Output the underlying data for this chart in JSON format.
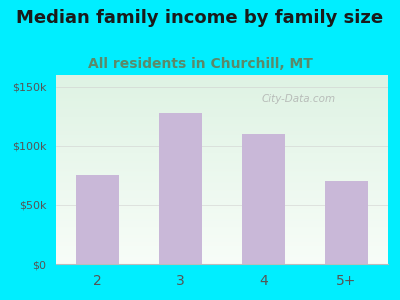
{
  "title": "Median family income by family size",
  "subtitle": "All residents in Churchill, MT",
  "categories": [
    "2",
    "3",
    "4",
    "5+"
  ],
  "values": [
    75000,
    128000,
    110000,
    70000
  ],
  "bar_color": "#c9b8d8",
  "ylim": [
    0,
    160000
  ],
  "yticks": [
    0,
    50000,
    100000,
    150000
  ],
  "ytick_labels": [
    "$0",
    "$50k",
    "$100k",
    "$150k"
  ],
  "bg_outer": "#00eeff",
  "title_fontsize": 13,
  "subtitle_fontsize": 10,
  "title_color": "#1a1a1a",
  "subtitle_color": "#5a8a6a",
  "tick_color": "#555555",
  "watermark": "City-Data.com",
  "plot_bg_top": "#ddf0dd",
  "plot_bg_bottom": "#f8fff8"
}
